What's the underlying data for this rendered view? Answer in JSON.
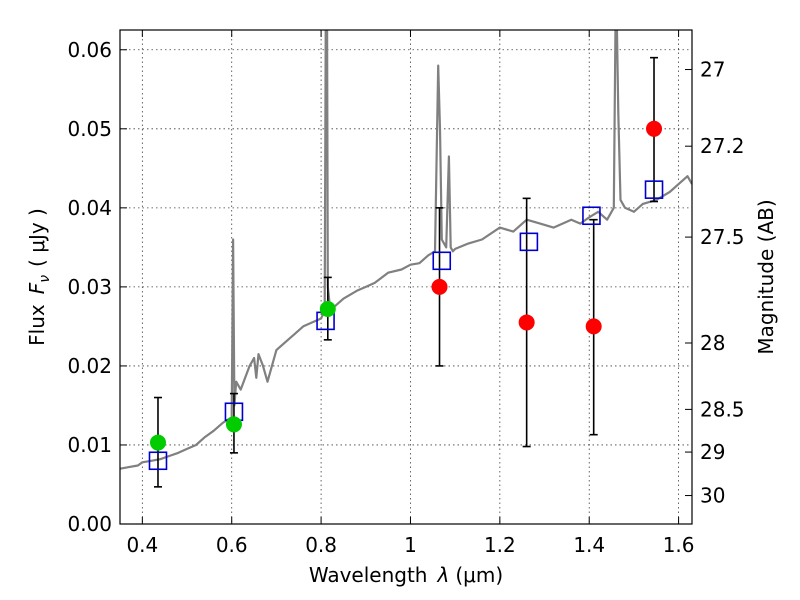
{
  "chart_data": {
    "type": "scatter",
    "xlabel_text": "Wavelength",
    "xlabel_symbol": "λ",
    "xlabel_unit": "(μm)",
    "ylabel_text": "Flux",
    "ylabel_symbol": "F",
    "ylabel_subscript": "ν",
    "ylabel_unit": "( μJy )",
    "y2label": "Magnitude (AB)",
    "xlim": [
      0.35,
      1.63
    ],
    "ylim": [
      0.0,
      0.0625
    ],
    "grid": true,
    "x_ticks": [
      0.4,
      0.6,
      0.8,
      1.0,
      1.2,
      1.4,
      1.6
    ],
    "x_tick_labels": [
      "0.4",
      "0.6",
      "0.8",
      "1",
      "1.2",
      "1.4",
      "1.6"
    ],
    "y_ticks": [
      0.0,
      0.01,
      0.02,
      0.03,
      0.04,
      0.05,
      0.06
    ],
    "y_tick_labels": [
      "0.00",
      "0.01",
      "0.02",
      "0.03",
      "0.04",
      "0.05",
      "0.06"
    ],
    "y2_ticks": [
      {
        "label": "27",
        "flux": 0.0575
      },
      {
        "label": "27.2",
        "flux": 0.0478
      },
      {
        "label": "27.5",
        "flux": 0.0363
      },
      {
        "label": "28",
        "flux": 0.0229
      },
      {
        "label": "28.5",
        "flux": 0.0145
      },
      {
        "label": "29",
        "flux": 0.0091
      },
      {
        "label": "30",
        "flux": 0.0036
      }
    ],
    "series": [
      {
        "kind": "line",
        "color": "#808080",
        "x": [
          0.35,
          0.37,
          0.39,
          0.4,
          0.42,
          0.44,
          0.46,
          0.48,
          0.5,
          0.52,
          0.54,
          0.56,
          0.58,
          0.6,
          0.603,
          0.606,
          0.61,
          0.62,
          0.64,
          0.65,
          0.655,
          0.66,
          0.67,
          0.68,
          0.7,
          0.72,
          0.74,
          0.76,
          0.78,
          0.8,
          0.808,
          0.812,
          0.815,
          0.818,
          0.82,
          0.83,
          0.85,
          0.88,
          0.9,
          0.92,
          0.95,
          0.98,
          1.0,
          1.02,
          1.04,
          1.055,
          1.062,
          1.066,
          1.07,
          1.08,
          1.086,
          1.09,
          1.095,
          1.1,
          1.13,
          1.16,
          1.2,
          1.23,
          1.26,
          1.29,
          1.32,
          1.36,
          1.38,
          1.4,
          1.42,
          1.44,
          1.455,
          1.46,
          1.465,
          1.47,
          1.48,
          1.5,
          1.52,
          1.55,
          1.58,
          1.6,
          1.62,
          1.63
        ],
        "y": [
          0.007,
          0.0072,
          0.0074,
          0.0078,
          0.008,
          0.0082,
          0.0086,
          0.009,
          0.0095,
          0.01,
          0.011,
          0.0118,
          0.0128,
          0.0135,
          0.036,
          0.015,
          0.018,
          0.017,
          0.02,
          0.021,
          0.0185,
          0.0215,
          0.02,
          0.018,
          0.022,
          0.023,
          0.024,
          0.025,
          0.0255,
          0.026,
          0.027,
          0.09,
          0.03,
          0.0285,
          0.027,
          0.0275,
          0.0285,
          0.0295,
          0.03,
          0.0305,
          0.0318,
          0.0322,
          0.0328,
          0.033,
          0.034,
          0.0345,
          0.058,
          0.05,
          0.036,
          0.035,
          0.0465,
          0.035,
          0.0345,
          0.0348,
          0.0355,
          0.036,
          0.0375,
          0.037,
          0.0385,
          0.038,
          0.0375,
          0.0385,
          0.038,
          0.0388,
          0.0395,
          0.0385,
          0.04,
          0.07,
          0.052,
          0.041,
          0.04,
          0.0395,
          0.0405,
          0.041,
          0.042,
          0.043,
          0.044,
          0.043
        ]
      }
    ],
    "model_points": {
      "marker": "open-square",
      "color": "#0000cc",
      "x": [
        0.435,
        0.605,
        0.81,
        1.07,
        1.265,
        1.405,
        1.545
      ],
      "y": [
        0.008,
        0.0142,
        0.0257,
        0.0333,
        0.0357,
        0.039,
        0.0423
      ]
    },
    "observed_points": [
      {
        "x": 0.435,
        "y": 0.0103,
        "yerr_low": 0.0047,
        "yerr_high": 0.016,
        "color": "#00cc00"
      },
      {
        "x": 0.605,
        "y": 0.0126,
        "yerr_low": 0.009,
        "yerr_high": 0.0165,
        "color": "#00cc00"
      },
      {
        "x": 0.815,
        "y": 0.0272,
        "yerr_low": 0.0233,
        "yerr_high": 0.0312,
        "color": "#00cc00"
      },
      {
        "x": 1.065,
        "y": 0.03,
        "yerr_low": 0.02,
        "yerr_high": 0.04,
        "color": "#ff0000"
      },
      {
        "x": 1.26,
        "y": 0.0255,
        "yerr_low": 0.0098,
        "yerr_high": 0.0412,
        "color": "#ff0000"
      },
      {
        "x": 1.41,
        "y": 0.025,
        "yerr_low": 0.0113,
        "yerr_high": 0.0385,
        "color": "#ff0000"
      },
      {
        "x": 1.545,
        "y": 0.05,
        "yerr_low": 0.0408,
        "yerr_high": 0.059,
        "color": "#ff0000"
      }
    ]
  }
}
